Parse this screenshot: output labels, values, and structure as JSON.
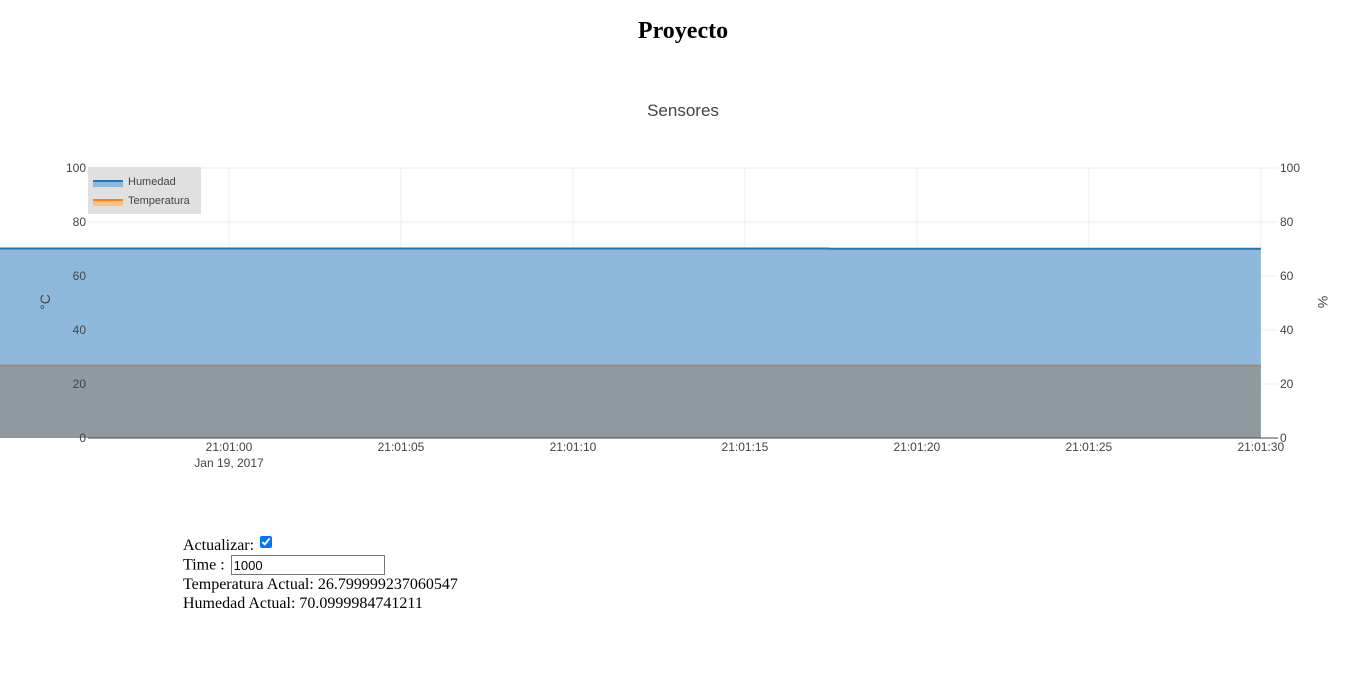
{
  "page": {
    "heading": "Proyecto"
  },
  "chart_data": {
    "type": "area",
    "title": "Sensores",
    "ylabel_left": "°C",
    "ylabel_right": "%",
    "ylim": [
      0,
      100
    ],
    "y_ticks": [
      0,
      20,
      40,
      60,
      80,
      100
    ],
    "xlim": [
      "20:59:55.9",
      "21:01:30.0"
    ],
    "x_ticks": [
      {
        "label": "21:01:00",
        "sublabel": "Jan 19, 2017",
        "seconds": 0
      },
      {
        "label": "21:01:05",
        "sublabel": "",
        "seconds": 5
      },
      {
        "label": "21:01:10",
        "sublabel": "",
        "seconds": 10
      },
      {
        "label": "21:01:15",
        "sublabel": "",
        "seconds": 15
      },
      {
        "label": "21:01:20",
        "sublabel": "",
        "seconds": 20
      },
      {
        "label": "21:01:25",
        "sublabel": "",
        "seconds": 25
      },
      {
        "label": "21:01:30",
        "sublabel": "",
        "seconds": 30
      }
    ],
    "x_range_seconds": [
      -4.1,
      30.5
    ],
    "grid": true,
    "legend_position": "top-left",
    "series": [
      {
        "name": "Humedad",
        "color": "#1f77b4",
        "fill": "#8fb9dc",
        "x": [
          "20:59:55.9",
          "21:01:17.4",
          "21:01:17.5",
          "21:01:30.0"
        ],
        "values": [
          70.2,
          70.2,
          70.1,
          70.1
        ]
      },
      {
        "name": "Temperatura",
        "color": "#ff7f0e",
        "fill": "#8f9aa0",
        "x": [
          "20:59:55.9",
          "21:01:30.0"
        ],
        "values": [
          26.8,
          26.8
        ]
      }
    ]
  },
  "controls": {
    "actualizar_label": "Actualizar:",
    "actualizar_checked": true,
    "time_label": "Time :",
    "time_value": "1000",
    "temperatura_text": "Temperatura Actual: 26.799999237060547",
    "humedad_text": "Humedad Actual: 70.0999984741211"
  }
}
